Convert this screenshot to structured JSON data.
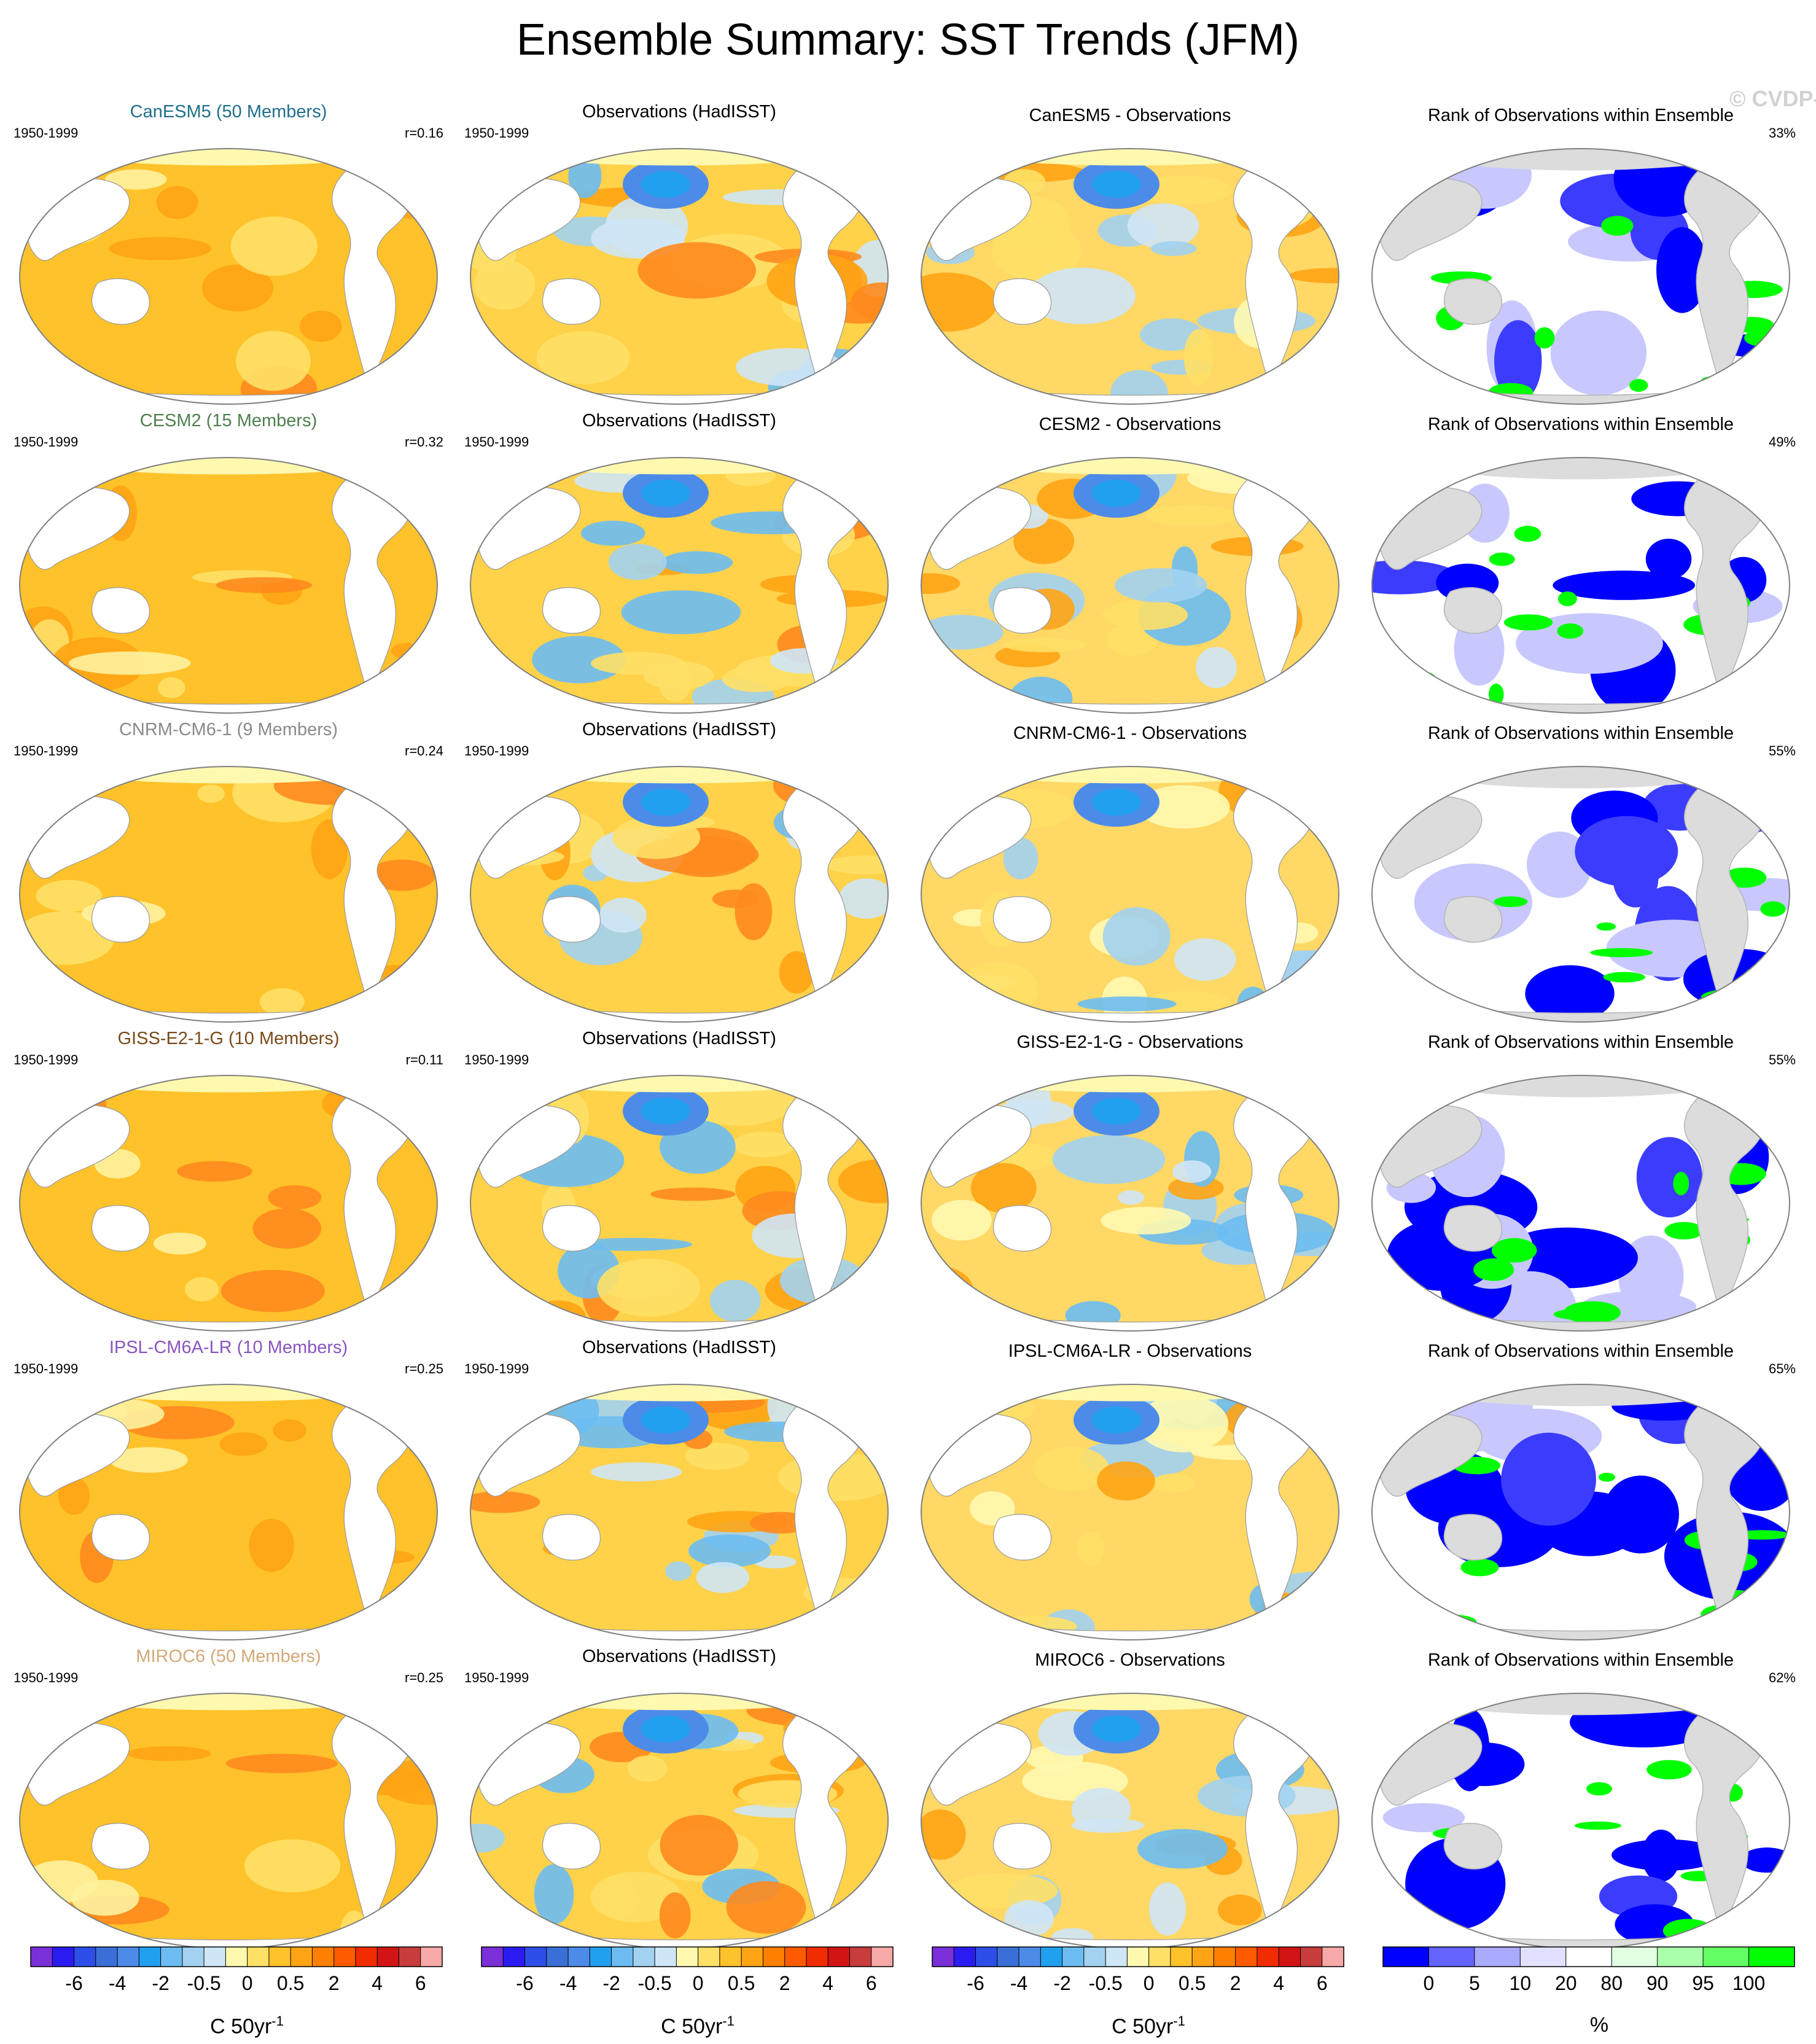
{
  "title": "Ensemble Summary: SST Trends (JFM)",
  "watermark": "© CVDP-LE",
  "period": "1950-1999",
  "obs_title": "Observations (HadISST)",
  "rank_title": "Rank of Observations within Ensemble",
  "rows": [
    {
      "model": "CanESM5",
      "model_title": "CanESM5 (50 Members)",
      "model_color": "#1f6f8b",
      "r": "r=0.16",
      "diff_title": "CanESM5 - Observations",
      "rank_pct": "33%"
    },
    {
      "model": "CESM2",
      "model_title": "CESM2 (15 Members)",
      "model_color": "#4f7f4f",
      "r": "r=0.32",
      "diff_title": "CESM2 - Observations",
      "rank_pct": "49%"
    },
    {
      "model": "CNRM-CM6-1",
      "model_title": "CNRM-CM6-1 (9 Members)",
      "model_color": "#8a8a8a",
      "r": "r=0.24",
      "diff_title": "CNRM-CM6-1 - Observations",
      "rank_pct": "55%"
    },
    {
      "model": "GISS-E2-1-G",
      "model_title": "GISS-E2-1-G (10 Members)",
      "model_color": "#7a4a1a",
      "r": "r=0.11",
      "diff_title": "GISS-E2-1-G - Observations",
      "rank_pct": "55%"
    },
    {
      "model": "IPSL-CM6A-LR",
      "model_title": "IPSL-CM6A-LR (10 Members)",
      "model_color": "#8a55c0",
      "r": "r=0.25",
      "diff_title": "IPSL-CM6A-LR - Observations",
      "rank_pct": "65%"
    },
    {
      "model": "MIROC6",
      "model_title": "MIROC6 (50 Members)",
      "model_color": "#d2aa78",
      "r": "r=0.25",
      "diff_title": "MIROC6 - Observations",
      "rank_pct": "62%"
    }
  ],
  "sst_colorbar": {
    "label": "C 50yr",
    "label_exp": "-1",
    "ticks": [
      "-6",
      "-4",
      "-2",
      "-0.5",
      "0",
      "0.5",
      "2",
      "4",
      "6"
    ],
    "colors": [
      "#7b2fd8",
      "#2a1cf0",
      "#2d4fe8",
      "#3b6fd8",
      "#4d8be8",
      "#22a0f0",
      "#6cbcf2",
      "#a2d2f0",
      "#cfe6f6",
      "#fff9b0",
      "#ffe066",
      "#ffc22a",
      "#ffa414",
      "#ff8000",
      "#ff5a00",
      "#f02c00",
      "#d21414",
      "#c83c3c",
      "#f7a8a8"
    ]
  },
  "rank_colorbar": {
    "label": "%",
    "ticks": [
      "0",
      "5",
      "10",
      "20",
      "80",
      "90",
      "95",
      "100"
    ],
    "colors": [
      "#0000ff",
      "#6464ff",
      "#aaaaff",
      "#e1e1ff",
      "#ffffff",
      "#e1ffe1",
      "#aaffaa",
      "#64ff64",
      "#00ff00"
    ]
  }
}
